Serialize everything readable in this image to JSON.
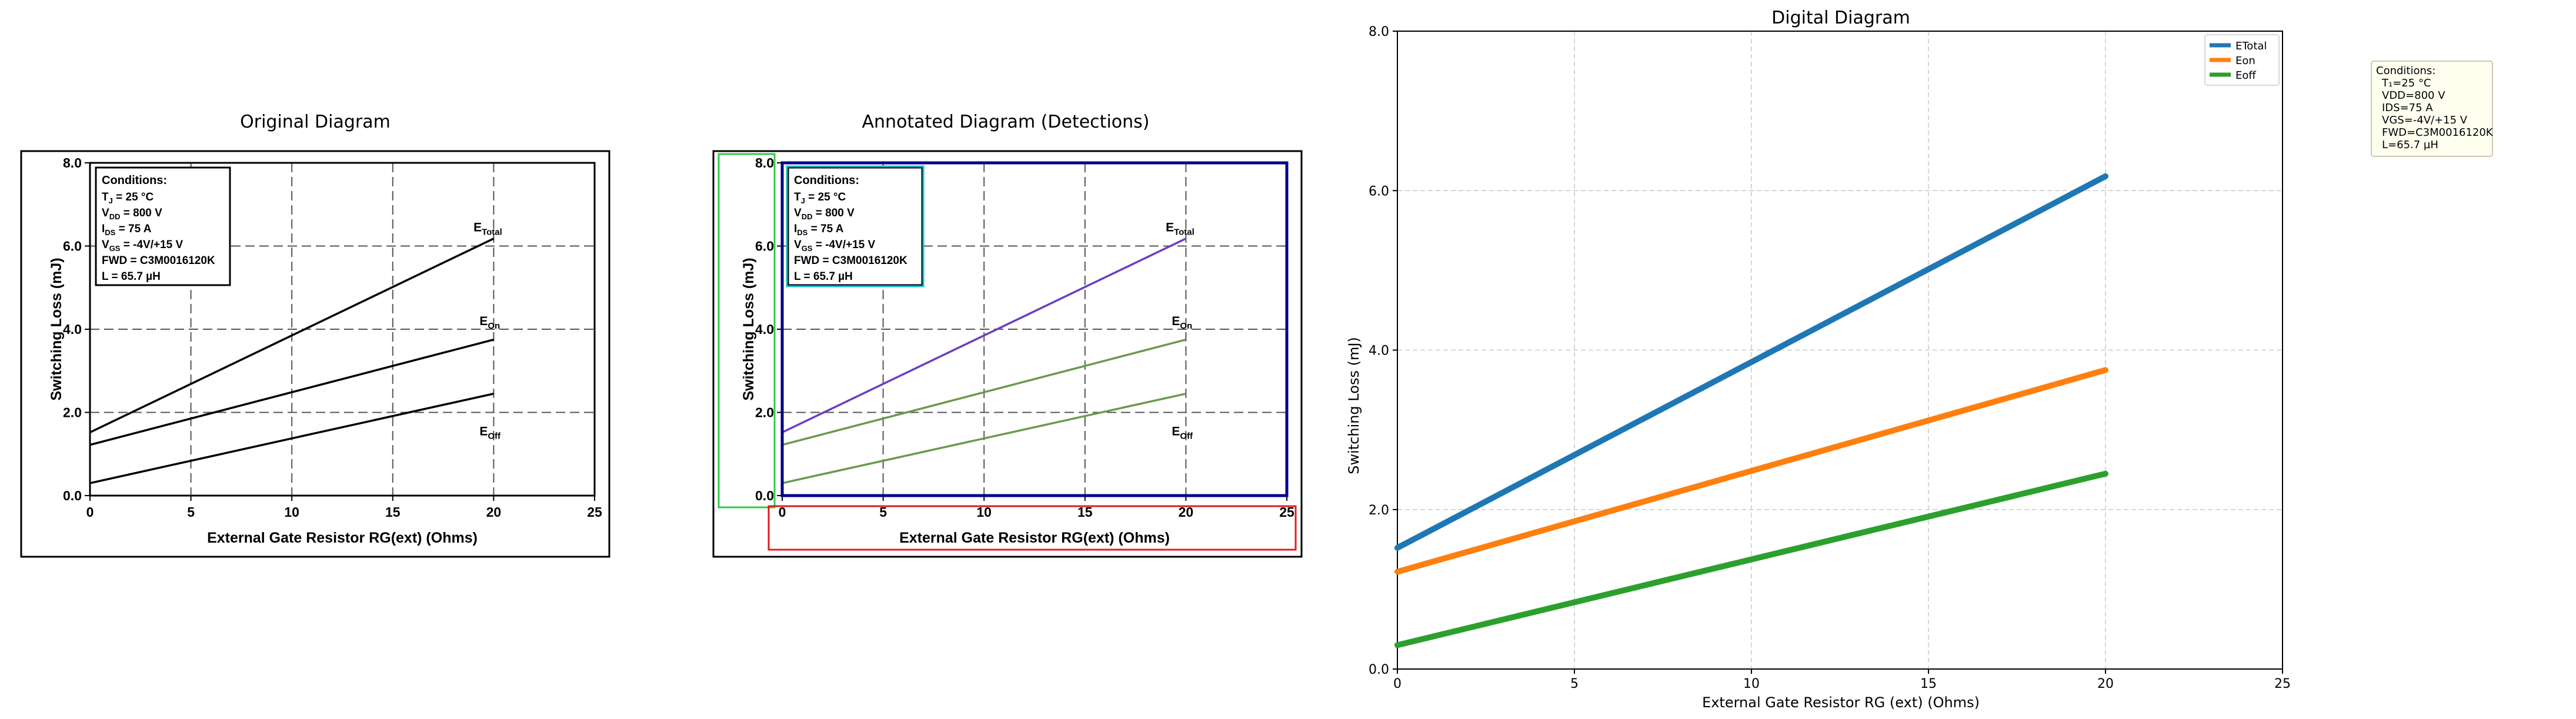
{
  "panels": {
    "original": {
      "title": "Original Diagram"
    },
    "annotated": {
      "title": "Annotated Diagram (Detections)"
    },
    "digital": {
      "title": "Digital Diagram"
    }
  },
  "scan": {
    "xlabel": "External Gate Resistor RG(ext) (Ohms)",
    "ylabel": "Switching Loss (mJ)",
    "x_ticks": [
      "0",
      "5",
      "10",
      "15",
      "20",
      "25"
    ],
    "y_ticks": [
      "0.0",
      "2.0",
      "4.0",
      "6.0",
      "8.0"
    ],
    "curve_labels": [
      {
        "main": "E",
        "sub": "Total"
      },
      {
        "main": "E",
        "sub": "On"
      },
      {
        "main": "E",
        "sub": "Off"
      }
    ],
    "conditions_title": "Conditions:",
    "conditions": [
      {
        "main": "T",
        "sub": "J",
        "rest": " = 25 °C"
      },
      {
        "main": "V",
        "sub": "DD",
        "rest": " = 800 V"
      },
      {
        "main": "I",
        "sub": "DS",
        "rest": " = 75 A"
      },
      {
        "main": "V",
        "sub": "GS",
        "rest": " = -4V/+15 V"
      },
      {
        "main": "FWD = C3M0016120K",
        "sub": "",
        "rest": ""
      },
      {
        "main": "L = 65.7 µH",
        "sub": "",
        "rest": ""
      }
    ]
  },
  "digital_conditions": [
    "Conditions:",
    "T₁=25 °C",
    "VDD=800 V",
    "IDS=75 A",
    "VGS=-4V/+15 V",
    "FWD=C3M0016120K",
    "L=65.7 µH"
  ],
  "colors": {
    "etotal": "#1f77b4",
    "eon": "#ff7f0e",
    "eoff": "#2ca02c",
    "det_green": "#2ecc40",
    "det_blue": "#00008b",
    "det_cyan": "#17becf",
    "det_red": "#e31a1c",
    "det_purple": "#6a3dc4",
    "det_olive": "#6b9a4b"
  },
  "chart_data": {
    "type": "line",
    "title": "Digital Diagram",
    "xlabel": "External Gate Resistor RG (ext) (Ohms)",
    "ylabel": "Switching Loss (mJ)",
    "xlim": [
      0,
      25
    ],
    "ylim": [
      0,
      8
    ],
    "x_ticks": [
      0,
      5,
      10,
      15,
      20,
      25
    ],
    "y_ticks": [
      "0.0",
      "2.0",
      "4.0",
      "6.0",
      "8.0"
    ],
    "grid": true,
    "legend": "top-right",
    "series": [
      {
        "name": "ETotal",
        "x": [
          0,
          20
        ],
        "values": [
          1.52,
          6.18
        ]
      },
      {
        "name": "Eon",
        "x": [
          0,
          20
        ],
        "values": [
          1.22,
          3.75
        ]
      },
      {
        "name": "Eoff",
        "x": [
          0,
          20
        ],
        "values": [
          0.3,
          2.45
        ]
      }
    ]
  }
}
